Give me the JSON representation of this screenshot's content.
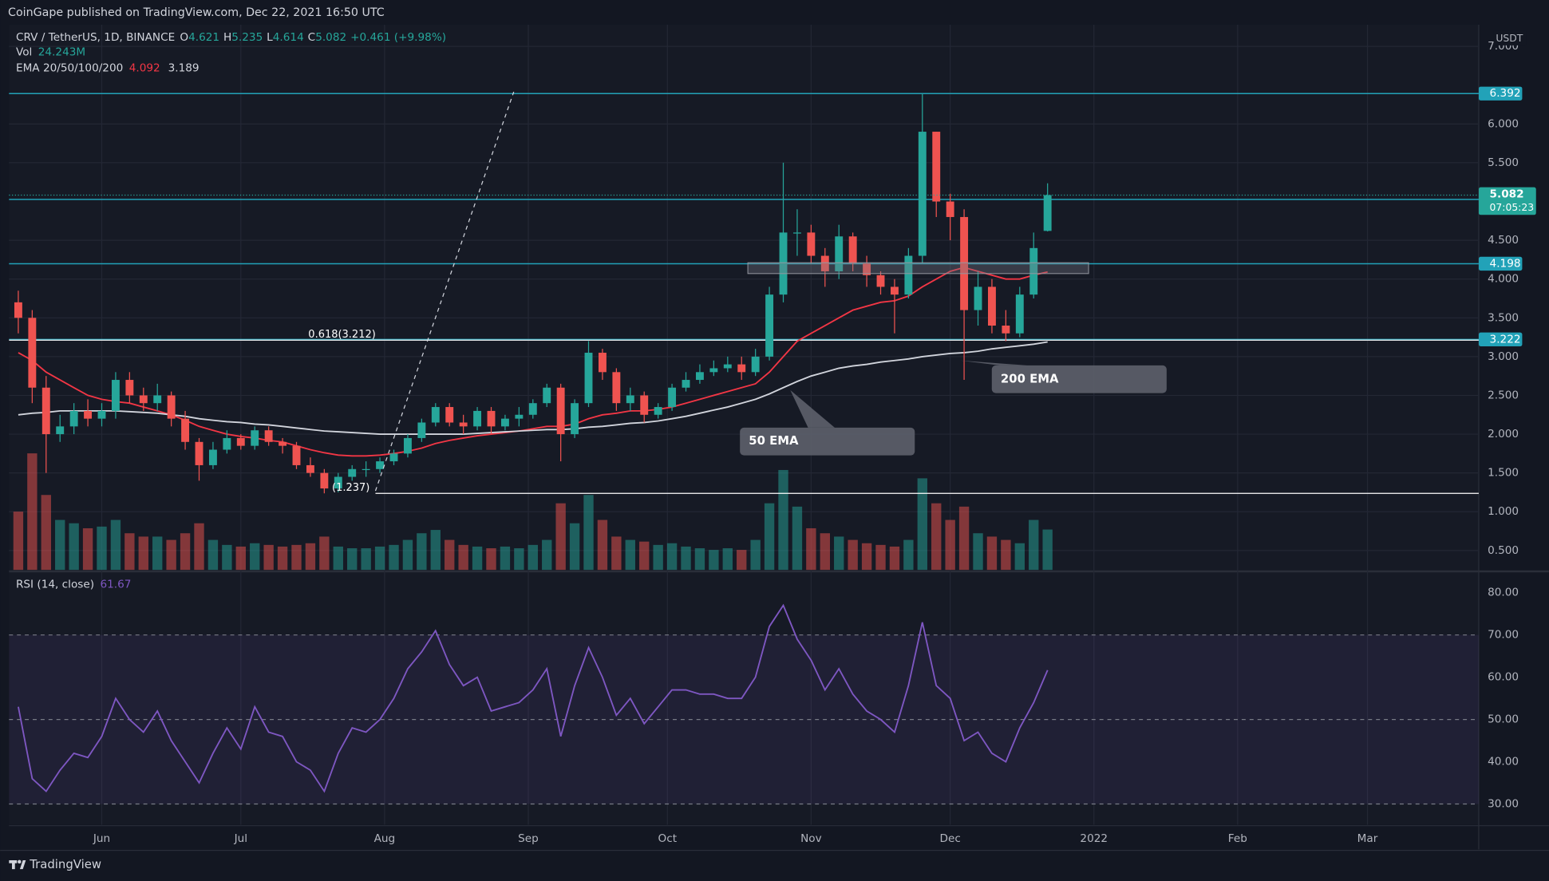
{
  "header": {
    "publisher": "CoinGape published on TradingView.com, Dec 22, 2021 16:50 UTC"
  },
  "footer": {
    "brand": "TradingView"
  },
  "chart_data": [
    {
      "type": "candlestick",
      "symbol": "CRV / TetherUS, 1D, BINANCE",
      "ohlc_prefixes": [
        "O",
        "H",
        "L",
        "C"
      ],
      "change": "+0.461 (+9.98%)",
      "volume_title": "Vol",
      "volume_label": "24.243M",
      "ema_title": "EMA 20/50/100/200",
      "currency": "USDT",
      "countdown": "07:05:23",
      "up_color": "#26a69a",
      "down_color": "#ef5350",
      "grid": true,
      "xlim": [
        132,
        449
      ],
      "xticks": [
        {
          "value": 152,
          "label": "Jun"
        },
        {
          "value": 182,
          "label": "Jul"
        },
        {
          "value": 213,
          "label": "Aug"
        },
        {
          "value": 244,
          "label": "Sep"
        },
        {
          "value": 274,
          "label": "Oct"
        },
        {
          "value": 305,
          "label": "Nov"
        },
        {
          "value": 335,
          "label": "Dec"
        },
        {
          "value": 366,
          "label": "2022"
        },
        {
          "value": 397,
          "label": "Feb"
        },
        {
          "value": 425,
          "label": "Mar"
        }
      ],
      "ylim": [
        0.25,
        7.28
      ],
      "yticks": [
        {
          "value": 0.5,
          "label": "0.500"
        },
        {
          "value": 1,
          "label": "1.000"
        },
        {
          "value": 1.5,
          "label": "1.500"
        },
        {
          "value": 2,
          "label": "2.000"
        },
        {
          "value": 2.5,
          "label": "2.500"
        },
        {
          "value": 3,
          "label": "3.000"
        },
        {
          "value": 3.5,
          "label": "3.500"
        },
        {
          "value": 4,
          "label": "4.000"
        },
        {
          "value": 4.5,
          "label": "4.500"
        },
        {
          "value": 5.5,
          "label": "5.500"
        },
        {
          "value": 6,
          "label": "6.000"
        },
        {
          "value": 7,
          "label": "7.000"
        }
      ],
      "x": [
        134,
        137,
        140,
        143,
        146,
        149,
        152,
        155,
        158,
        161,
        164,
        167,
        170,
        173,
        176,
        179,
        182,
        185,
        188,
        191,
        194,
        197,
        200,
        203,
        206,
        209,
        212,
        215,
        218,
        221,
        224,
        227,
        230,
        233,
        236,
        239,
        242,
        245,
        248,
        251,
        254,
        257,
        260,
        263,
        266,
        269,
        272,
        275,
        278,
        281,
        284,
        287,
        290,
        293,
        296,
        299,
        302,
        305,
        308,
        311,
        314,
        317,
        320,
        323,
        326,
        329,
        332,
        335,
        338,
        341,
        344,
        347,
        350,
        353,
        356
      ],
      "open": [
        3.7,
        3.5,
        2.6,
        2.0,
        2.1,
        2.3,
        2.2,
        2.3,
        2.7,
        2.5,
        2.4,
        2.5,
        2.2,
        1.9,
        1.6,
        1.8,
        1.95,
        1.85,
        2.05,
        1.9,
        1.85,
        1.6,
        1.5,
        1.3,
        1.45,
        1.55,
        1.55,
        1.65,
        1.75,
        1.95,
        2.15,
        2.35,
        2.15,
        2.1,
        2.3,
        2.1,
        2.2,
        2.25,
        2.4,
        2.6,
        2.0,
        2.4,
        3.05,
        2.8,
        2.4,
        2.5,
        2.25,
        2.35,
        2.6,
        2.7,
        2.8,
        2.85,
        2.9,
        2.8,
        3.0,
        3.8,
        4.6,
        4.6,
        4.3,
        4.1,
        4.55,
        4.2,
        4.05,
        3.9,
        3.8,
        4.3,
        5.9,
        5.0,
        4.8,
        3.6,
        3.9,
        3.4,
        3.3,
        3.8,
        4.621
      ],
      "high": [
        3.85,
        3.6,
        2.75,
        2.25,
        2.4,
        2.45,
        2.4,
        2.8,
        2.8,
        2.6,
        2.65,
        2.55,
        2.3,
        1.95,
        1.9,
        2.05,
        2.0,
        2.1,
        2.1,
        1.95,
        1.9,
        1.7,
        1.55,
        1.5,
        1.6,
        1.65,
        1.7,
        1.8,
        2.0,
        2.2,
        2.4,
        2.4,
        2.25,
        2.35,
        2.35,
        2.25,
        2.35,
        2.45,
        2.65,
        2.65,
        2.45,
        3.2,
        3.1,
        2.85,
        2.6,
        2.55,
        2.4,
        2.65,
        2.8,
        2.9,
        2.95,
        3.0,
        3.0,
        3.1,
        3.9,
        5.5,
        4.9,
        4.7,
        4.4,
        4.7,
        4.6,
        4.3,
        4.1,
        4.0,
        4.4,
        6.39,
        5.9,
        5.1,
        4.9,
        4.1,
        4.0,
        3.6,
        3.9,
        4.6,
        5.235
      ],
      "low": [
        3.3,
        2.4,
        1.5,
        1.9,
        2.0,
        2.1,
        2.1,
        2.2,
        2.4,
        2.3,
        2.3,
        2.1,
        1.8,
        1.4,
        1.55,
        1.75,
        1.8,
        1.8,
        1.85,
        1.75,
        1.55,
        1.45,
        1.237,
        1.25,
        1.4,
        1.45,
        1.5,
        1.6,
        1.7,
        1.9,
        2.1,
        2.1,
        2.0,
        2.05,
        2.0,
        2.05,
        2.1,
        2.2,
        2.35,
        1.65,
        1.95,
        2.35,
        2.7,
        2.3,
        2.3,
        2.15,
        2.2,
        2.3,
        2.55,
        2.65,
        2.75,
        2.8,
        2.7,
        2.75,
        2.95,
        3.7,
        4.3,
        4.2,
        3.9,
        4.0,
        4.1,
        3.9,
        3.8,
        3.3,
        3.75,
        4.2,
        4.8,
        4.5,
        2.7,
        3.4,
        3.3,
        3.2,
        3.25,
        3.75,
        4.614
      ],
      "close": [
        3.5,
        2.6,
        2.0,
        2.1,
        2.3,
        2.2,
        2.3,
        2.7,
        2.5,
        2.4,
        2.5,
        2.2,
        1.9,
        1.6,
        1.8,
        1.95,
        1.85,
        2.05,
        1.9,
        1.85,
        1.6,
        1.5,
        1.3,
        1.45,
        1.55,
        1.55,
        1.65,
        1.75,
        1.95,
        2.15,
        2.35,
        2.15,
        2.1,
        2.3,
        2.1,
        2.2,
        2.25,
        2.4,
        2.6,
        2.0,
        2.4,
        3.05,
        2.8,
        2.4,
        2.5,
        2.25,
        2.35,
        2.6,
        2.7,
        2.8,
        2.85,
        2.9,
        2.8,
        3.0,
        3.8,
        4.6,
        4.6,
        4.3,
        4.1,
        4.55,
        4.2,
        4.05,
        3.9,
        3.8,
        4.3,
        5.9,
        5.0,
        4.8,
        3.6,
        3.9,
        3.4,
        3.3,
        3.8,
        4.4,
        5.082
      ],
      "volume": [
        35,
        70,
        45,
        30,
        28,
        25,
        26,
        30,
        22,
        20,
        20,
        18,
        22,
        28,
        18,
        15,
        14,
        16,
        15,
        14,
        15,
        16,
        20,
        14,
        13,
        13,
        14,
        15,
        18,
        22,
        24,
        18,
        15,
        14,
        13,
        14,
        13,
        15,
        18,
        40,
        28,
        45,
        30,
        20,
        18,
        17,
        15,
        16,
        14,
        13,
        12,
        13,
        12,
        18,
        40,
        60,
        38,
        25,
        22,
        20,
        18,
        16,
        15,
        14,
        18,
        55,
        40,
        30,
        38,
        22,
        20,
        18,
        16,
        30,
        24.243
      ],
      "ema": [
        {
          "color": "#f23645",
          "values": [
            3.05,
            2.95,
            2.8,
            2.7,
            2.6,
            2.5,
            2.45,
            2.42,
            2.4,
            2.35,
            2.3,
            2.25,
            2.18,
            2.1,
            2.05,
            2.0,
            1.97,
            1.95,
            1.92,
            1.9,
            1.85,
            1.8,
            1.76,
            1.73,
            1.72,
            1.72,
            1.73,
            1.75,
            1.78,
            1.82,
            1.88,
            1.92,
            1.95,
            1.98,
            2.0,
            2.02,
            2.04,
            2.07,
            2.1,
            2.1,
            2.13,
            2.2,
            2.25,
            2.27,
            2.3,
            2.3,
            2.32,
            2.35,
            2.4,
            2.45,
            2.5,
            2.55,
            2.6,
            2.65,
            2.8,
            3.0,
            3.2,
            3.3,
            3.4,
            3.5,
            3.6,
            3.65,
            3.7,
            3.72,
            3.78,
            3.9,
            4.0,
            4.1,
            4.15,
            4.1,
            4.05,
            4.0,
            4.0,
            4.05,
            4.092
          ]
        },
        {
          "color": "#d1d4dc",
          "values": [
            2.25,
            2.27,
            2.28,
            2.3,
            2.3,
            2.3,
            2.3,
            2.3,
            2.29,
            2.28,
            2.27,
            2.25,
            2.23,
            2.2,
            2.18,
            2.16,
            2.15,
            2.13,
            2.12,
            2.1,
            2.08,
            2.06,
            2.04,
            2.03,
            2.02,
            2.01,
            2.0,
            2.0,
            2.0,
            2.0,
            2.0,
            2.0,
            2.0,
            2.01,
            2.02,
            2.03,
            2.04,
            2.05,
            2.06,
            2.06,
            2.07,
            2.09,
            2.1,
            2.12,
            2.14,
            2.15,
            2.17,
            2.2,
            2.23,
            2.27,
            2.31,
            2.35,
            2.4,
            2.45,
            2.52,
            2.6,
            2.68,
            2.75,
            2.8,
            2.85,
            2.88,
            2.9,
            2.93,
            2.95,
            2.97,
            3.0,
            3.02,
            3.04,
            3.05,
            3.07,
            3.1,
            3.12,
            3.14,
            3.16,
            3.189
          ]
        }
      ],
      "levels": [
        6.392,
        5.027,
        4.198,
        3.222
      ],
      "level_color": "#22a2b8",
      "fibs": [
        {
          "value": 3.212,
          "label": "0.618(3.212)"
        },
        {
          "value": 1.237,
          "label": "(1.237)"
        }
      ],
      "annotations": [
        "50 EMA",
        "200 EMA"
      ]
    },
    {
      "type": "line",
      "title": "RSI (14, close)",
      "color": "#7e57c2",
      "band": [
        30,
        70
      ],
      "levels": [
        70,
        50,
        30
      ],
      "ylim": [
        25.1,
        84.7
      ],
      "yticks": [
        {
          "value": 30,
          "label": "30.00"
        },
        {
          "value": 40,
          "label": "40.00"
        },
        {
          "value": 50,
          "label": "50.00"
        },
        {
          "value": 60,
          "label": "60.00"
        },
        {
          "value": 70,
          "label": "70.00"
        },
        {
          "value": 80,
          "label": "80.00"
        }
      ],
      "values": [
        53,
        36,
        33,
        38,
        42,
        41,
        46,
        55,
        50,
        47,
        52,
        45,
        40,
        35,
        42,
        48,
        43,
        53,
        47,
        46,
        40,
        38,
        33,
        42,
        48,
        47,
        50,
        55,
        62,
        66,
        71,
        63,
        58,
        60,
        52,
        53,
        54,
        57,
        62,
        46,
        58,
        67,
        60,
        51,
        55,
        49,
        53,
        57,
        57,
        56,
        56,
        55,
        55,
        60,
        72,
        77,
        69,
        64,
        57,
        62,
        56,
        52,
        50,
        47,
        58,
        73,
        58,
        55,
        45,
        47,
        42,
        40,
        48,
        54,
        61.67
      ]
    }
  ]
}
